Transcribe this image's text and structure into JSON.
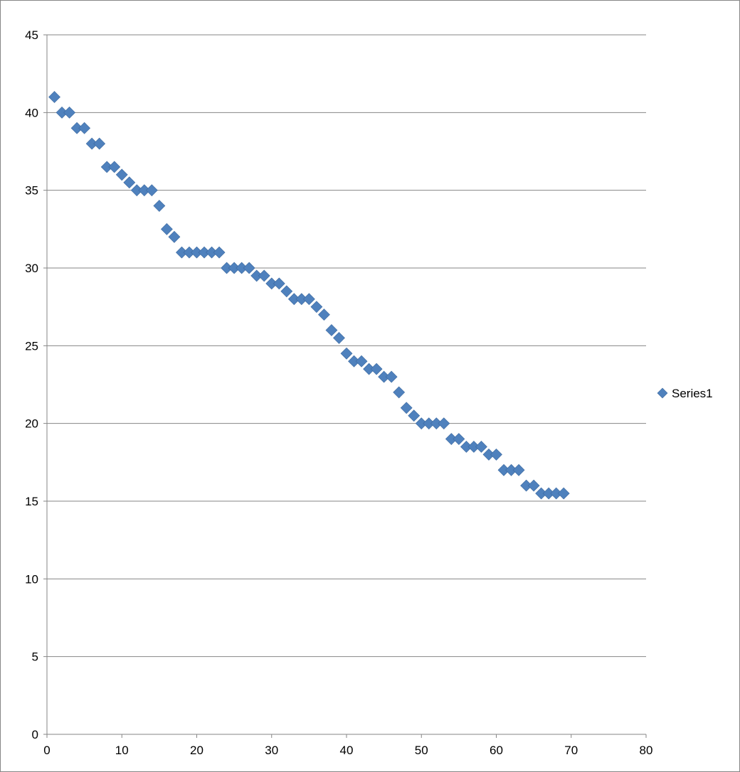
{
  "chart_data": {
    "type": "scatter",
    "title": "",
    "xlabel": "",
    "ylabel": "",
    "xlim": [
      0,
      80
    ],
    "ylim": [
      0,
      45
    ],
    "x_ticks": [
      "0",
      "10",
      "20",
      "30",
      "40",
      "50",
      "60",
      "70",
      "80"
    ],
    "y_ticks": [
      "0",
      "5",
      "10",
      "15",
      "20",
      "25",
      "30",
      "35",
      "40",
      "45"
    ],
    "grid": "horizontal major gridlines",
    "legend_position": "right",
    "marker": "diamond",
    "colors": {
      "series": "#4F81BD",
      "grid": "#868686",
      "axis": "#868686"
    },
    "series": [
      {
        "name": "Series1",
        "x": [
          1,
          2,
          3,
          4,
          5,
          6,
          7,
          8,
          9,
          10,
          11,
          12,
          13,
          14,
          15,
          16,
          17,
          18,
          19,
          20,
          21,
          22,
          23,
          24,
          25,
          26,
          27,
          28,
          29,
          30,
          31,
          32,
          33,
          34,
          35,
          36,
          37,
          38,
          39,
          40,
          41,
          42,
          43,
          44,
          45,
          46,
          47,
          48,
          49,
          50,
          51,
          52,
          53,
          54,
          55,
          56,
          57,
          58,
          59,
          60,
          61,
          62,
          63,
          64,
          65,
          66,
          67,
          68,
          69
        ],
        "y": [
          41,
          40,
          40,
          39,
          39,
          38,
          38,
          36.5,
          36.5,
          36,
          35.5,
          35,
          35,
          35,
          34,
          32.5,
          32,
          31,
          31,
          31,
          31,
          31,
          31,
          30,
          30,
          30,
          30,
          29.5,
          29.5,
          29,
          29,
          28.5,
          28,
          28,
          28,
          27.5,
          27,
          26,
          25.5,
          24.5,
          24,
          24,
          23.5,
          23.5,
          23,
          23,
          22,
          21,
          20.5,
          20,
          20,
          20,
          20,
          19,
          19,
          18.5,
          18.5,
          18.5,
          18,
          18,
          17,
          17,
          17,
          16,
          16,
          15.5,
          15.5,
          15.5,
          15.5
        ]
      }
    ]
  }
}
